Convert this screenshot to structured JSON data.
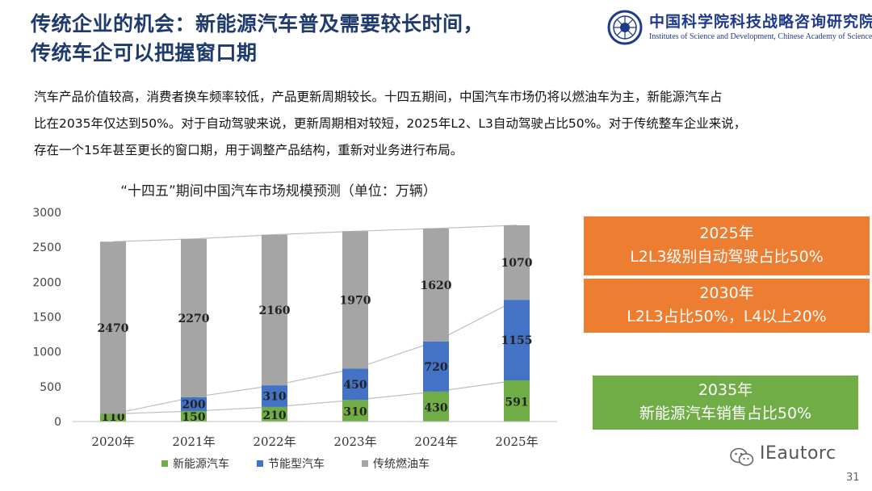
{
  "slide": {
    "title_line1": "传统企业的机会：新能源汽车普及需要较长时间，",
    "title_line2": "传统车企可以把握窗口期",
    "body_line1": "汽车产品价值较高，消费者换车频率较低，产品更新周期较长。十四五期间，中国汽车市场仍将以燃油车为主，新能源汽车占",
    "body_line2": "比在2035年仅达到50%。对于自动驾驶来说，更新周期相对较短，2025年L2、L3自动驾驶占比50%。对于传统整车企业来说，",
    "body_line3": "存在一个15年甚至更长的窗口期，用于调整产品结构，重新对业务进行布局。",
    "page_number": "31"
  },
  "logo": {
    "cn": "中国科学院科技战略咨询研究院",
    "en": "Institutes of Science and Development, Chinese Academy of Sciences"
  },
  "callouts": [
    {
      "line1": "2025年",
      "line2": "L2L3级别自动驾驶占比50%"
    },
    {
      "line1": "2030年",
      "line2": "L2L3占比50%，L4以上20%"
    },
    {
      "line1": "2035年",
      "line2": "新能源汽车销售占比50%"
    }
  ],
  "watermark": {
    "text": "IEautorc"
  },
  "colors": {
    "nev": "#70ad47",
    "efficient": "#4472c4",
    "fuel": "#a5a5a5",
    "orange": "#ed7d31",
    "green_box": "#70ad47",
    "title": "#1f3a6e"
  },
  "chart_data": {
    "type": "bar",
    "stacked": true,
    "title": "“十四五”期间中国汽车市场规模预测（单位：万辆）",
    "categories": [
      "2020年",
      "2021年",
      "2022年",
      "2023年",
      "2024年",
      "2025年"
    ],
    "series": [
      {
        "name": "新能源汽车",
        "color": "#70ad47",
        "values": [
          110,
          150,
          210,
          310,
          430,
          591
        ]
      },
      {
        "name": "节能型汽车",
        "color": "#4472c4",
        "values": [
          0,
          200,
          310,
          450,
          720,
          1155
        ]
      },
      {
        "name": "传统燃油车",
        "color": "#a5a5a5",
        "values": [
          2470,
          2270,
          2160,
          1970,
          1620,
          1070
        ]
      }
    ],
    "labels": {
      "新能源汽车": [
        "110",
        "150",
        "210",
        "310",
        "430",
        "591"
      ],
      "节能型汽车": [
        "",
        "200",
        "310",
        "450",
        "720",
        "1155"
      ],
      "传统燃油车": [
        "2470",
        "2270",
        "2160",
        "1970",
        "1620",
        "1070"
      ]
    },
    "ylim": [
      0,
      3000
    ],
    "yticks": [
      0,
      500,
      1000,
      1500,
      2000,
      2500,
      3000
    ],
    "gridlines": false,
    "connector_lines": true,
    "legend": "bottom",
    "xlabel": "",
    "ylabel": ""
  }
}
